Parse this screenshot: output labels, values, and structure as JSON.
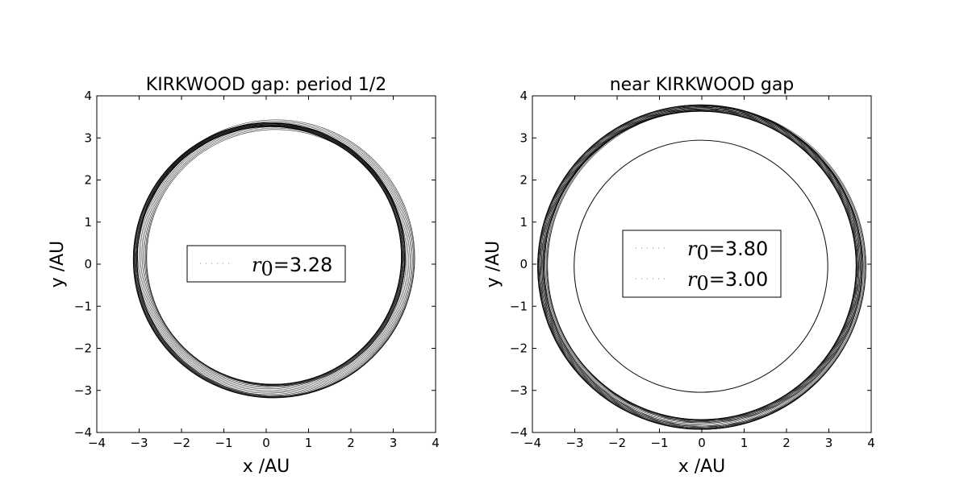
{
  "chart_data": [
    {
      "type": "line",
      "title": "KIRKWOOD gap: period 1/2",
      "xlabel": "x  /AU",
      "ylabel": "y  /AU",
      "xlim": [
        -4,
        4
      ],
      "ylim": [
        -4,
        4
      ],
      "xticks": [
        "−4",
        "−3",
        "−2",
        "−1",
        "0",
        "1",
        "2",
        "3",
        "4"
      ],
      "yticks": [
        "−4",
        "−3",
        "−2",
        "−1",
        "0",
        "1",
        "2",
        "3",
        "4"
      ],
      "grid": false,
      "legend_position": "center",
      "series": [
        {
          "name_prefix": "r",
          "name_subscript": "0",
          "name_value": "3.28",
          "orbit": {
            "x_center": 0.15,
            "y_center": 0.2,
            "radius_min": 3.05,
            "radius_max": 3.28,
            "shape": "precessing near-circular band"
          },
          "color": "#000000"
        }
      ]
    },
    {
      "type": "line",
      "title": "near KIRKWOOD gap",
      "xlabel": "x  /AU",
      "ylabel": "y  /AU",
      "xlim": [
        -4,
        4
      ],
      "ylim": [
        -4,
        4
      ],
      "xticks": [
        "−4",
        "−3",
        "−2",
        "−1",
        "0",
        "1",
        "2",
        "3",
        "4"
      ],
      "yticks": [
        "−4",
        "−3",
        "−2",
        "−1",
        "0",
        "1",
        "2",
        "3",
        "4"
      ],
      "grid": false,
      "legend_position": "center",
      "series": [
        {
          "name_prefix": "r",
          "name_subscript": "0",
          "name_value": "3.80",
          "orbit": {
            "x_center": 0.0,
            "y_center": 0.0,
            "radius_min": 3.72,
            "radius_max": 3.8,
            "shape": "near-circular band"
          },
          "color": "#000000"
        },
        {
          "name_prefix": "r",
          "name_subscript": "0",
          "name_value": "3.00",
          "orbit": {
            "x_center": 0.0,
            "y_center": 0.0,
            "radius_min": 2.99,
            "radius_max": 3.0,
            "shape": "circle"
          },
          "color": "#000000"
        }
      ]
    }
  ]
}
